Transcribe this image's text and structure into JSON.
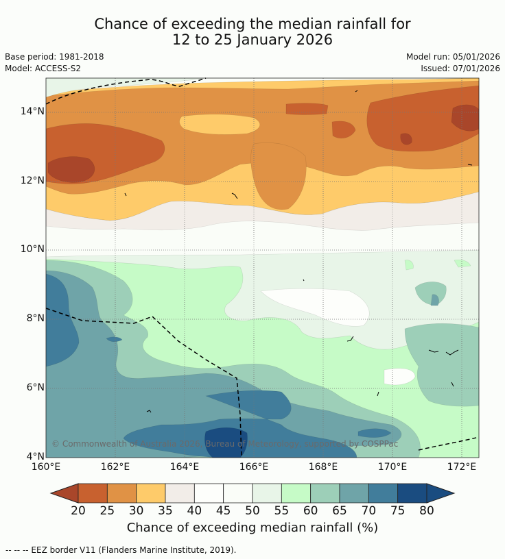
{
  "title": {
    "line1": "Chance of exceeding the median rainfall for",
    "line2": "12 to 25 January 2026"
  },
  "meta": {
    "base_period": "Base period: 1981-2018",
    "model": "Model: ACCESS-S2",
    "model_run": "Model run: 05/01/2026",
    "issued": "Issued: 07/01/2026"
  },
  "axes": {
    "y_labels": [
      "14°N",
      "12°N",
      "10°N",
      "8°N",
      "6°N",
      "4°N"
    ],
    "x_labels": [
      "160°E",
      "162°E",
      "164°E",
      "166°E",
      "168°E",
      "170°E",
      "172°E"
    ]
  },
  "colorbar": {
    "ticks": [
      "20",
      "25",
      "30",
      "35",
      "40",
      "45",
      "50",
      "55",
      "60",
      "65",
      "70",
      "75",
      "80"
    ],
    "colors": [
      "#a9462a",
      "#c8612f",
      "#e09245",
      "#fecb6a",
      "#f2ede8",
      "#fdfefb",
      "#fafdf8",
      "#e8f5e8",
      "#c6fbc7",
      "#9dcfb8",
      "#6fa4a8",
      "#417d9b",
      "#1a4c80"
    ],
    "title": "Chance of exceeding median rainfall (%)"
  },
  "copyright": "© Commonwealth of Australia 2026, Bureau of Meteorology, supported by COSPPac",
  "footer": "--  --  -- EEZ border V11 (Flanders Marine Institute, 2019).",
  "colors": {
    "c20": "#a9462a",
    "c25": "#c8612f",
    "c30": "#e09245",
    "c35": "#fecb6a",
    "c40": "#f2ede8",
    "c45": "#fdfefb",
    "c55": "#e8f5e8",
    "c60": "#c6fbc7",
    "c65": "#9dcfb8",
    "c70": "#6fa4a8",
    "c75": "#417d9b",
    "c80": "#1a4c80"
  }
}
